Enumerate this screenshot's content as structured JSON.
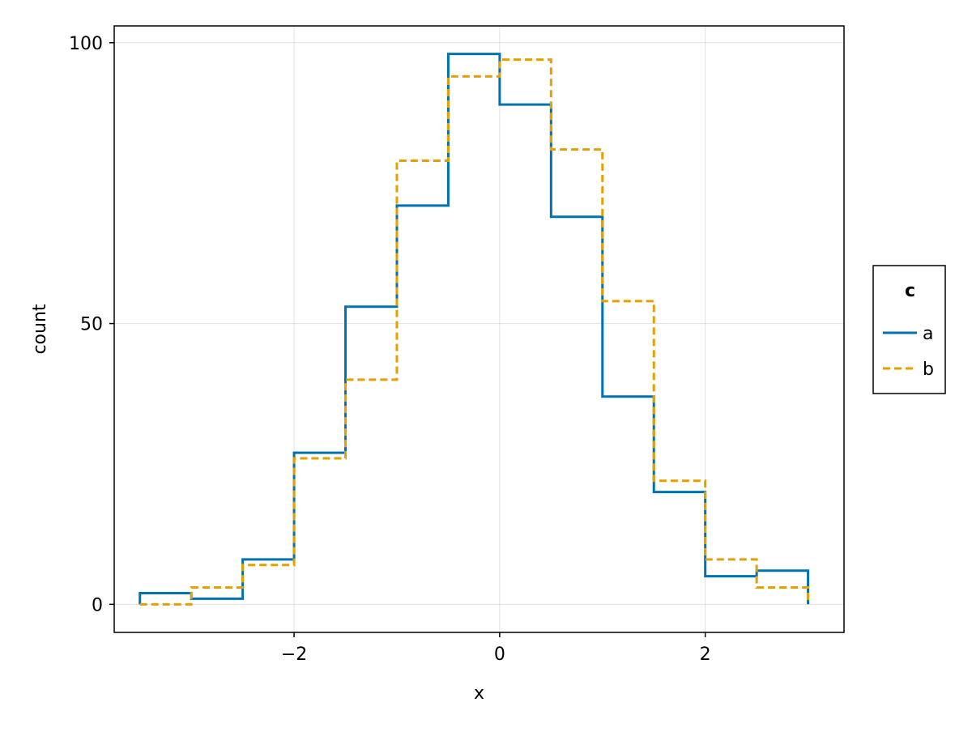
{
  "chart_data": {
    "type": "histogram-step",
    "title": "",
    "xlabel": "x",
    "ylabel": "count",
    "xlim": [
      -3.75,
      3.35
    ],
    "ylim": [
      -5,
      103
    ],
    "xticks": [
      -2,
      0,
      2
    ],
    "xtick_labels": [
      "−2",
      "0",
      "2"
    ],
    "yticks": [
      0,
      50,
      100
    ],
    "ytick_labels": [
      "0",
      "50",
      "100"
    ],
    "grid": true,
    "legend": {
      "title": "c",
      "placement": "right",
      "entries": [
        "a",
        "b"
      ]
    },
    "bin_edges": [
      -3.5,
      -3,
      -2.5,
      -2,
      -1.5,
      -1,
      -0.5,
      0,
      0.5,
      1,
      1.5,
      2,
      2.5,
      3
    ],
    "series": [
      {
        "name": "a",
        "color": "#0072b2",
        "dash": "solid",
        "values": [
          2,
          1,
          8,
          27,
          53,
          71,
          98,
          89,
          69,
          37,
          20,
          5,
          6
        ]
      },
      {
        "name": "b",
        "color": "#e69f00",
        "dash": "dashed",
        "values": [
          0,
          3,
          7,
          26,
          40,
          79,
          94,
          97,
          81,
          54,
          22,
          8,
          3
        ]
      }
    ]
  }
}
